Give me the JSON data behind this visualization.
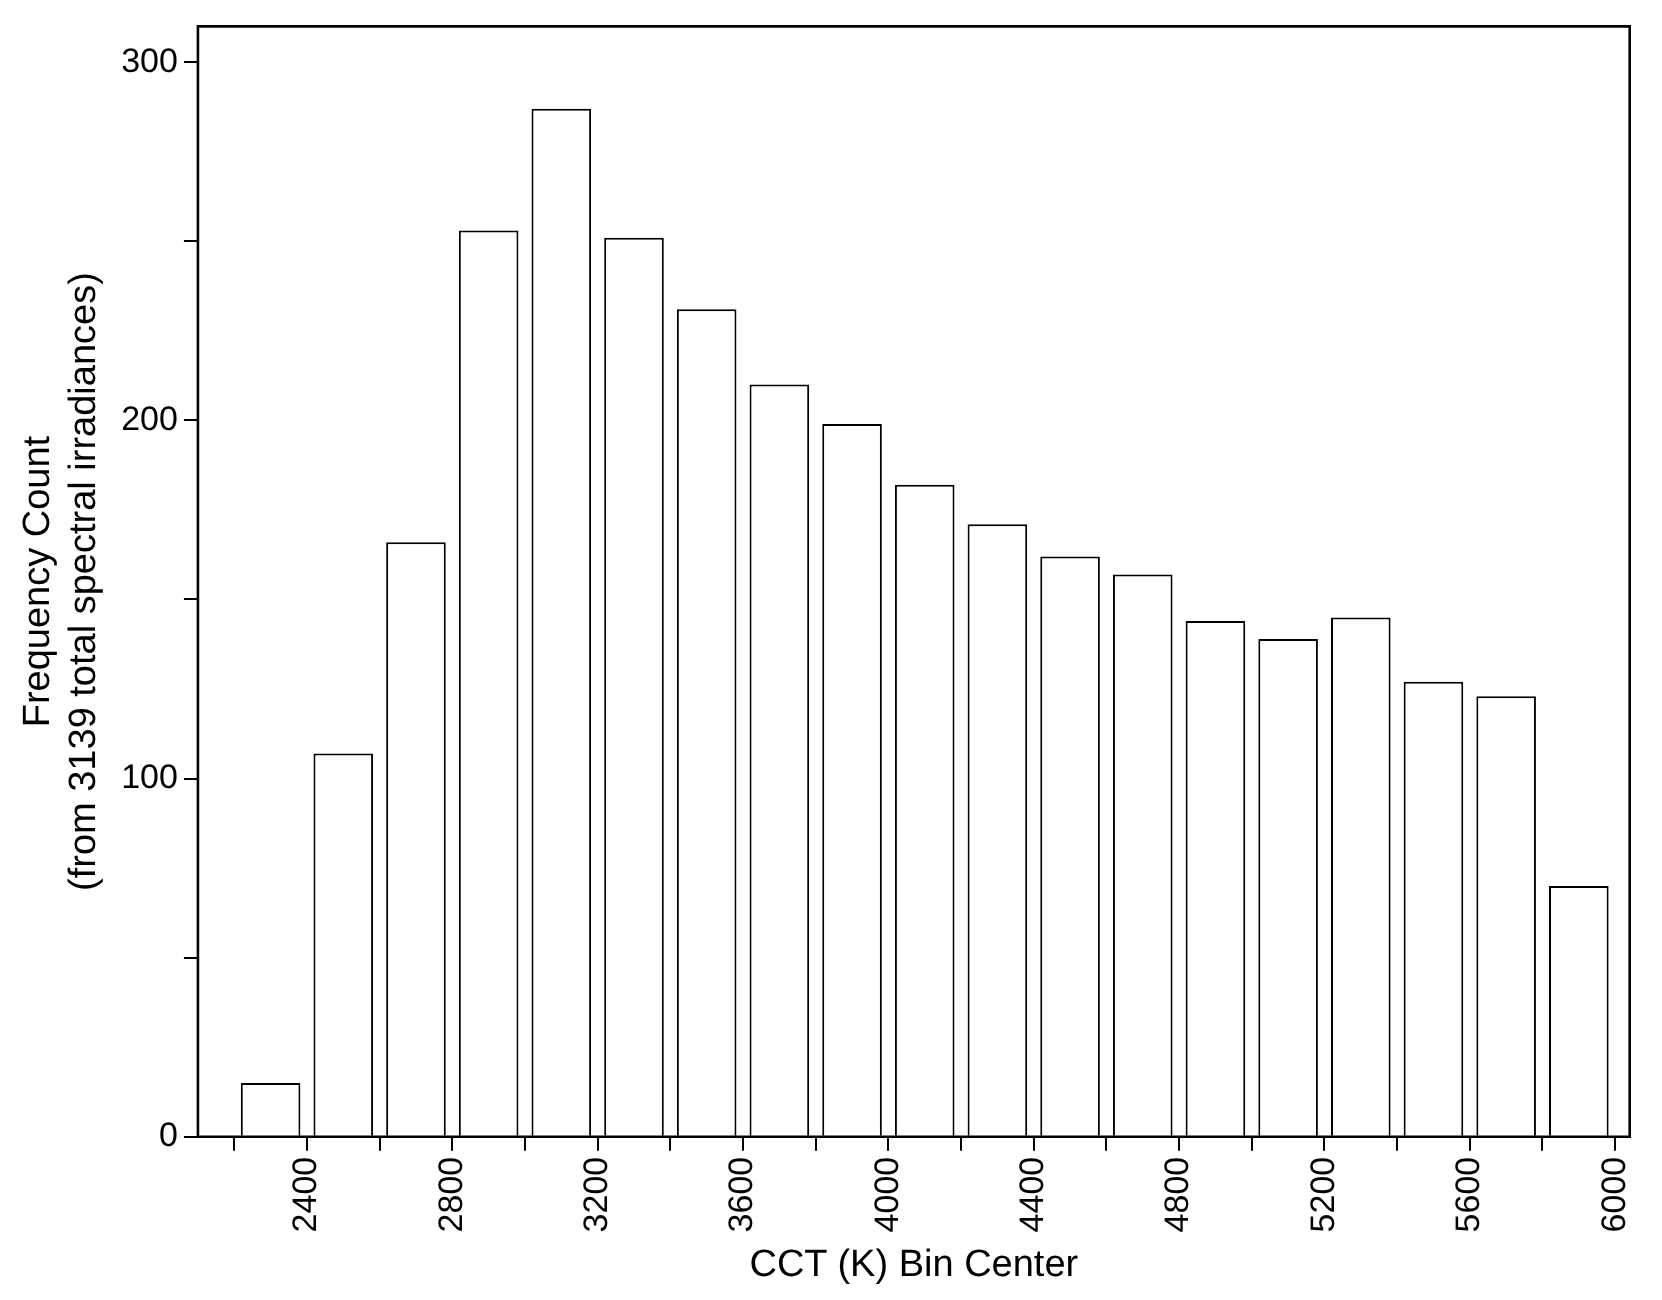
{
  "chart_data": {
    "type": "histogram",
    "xlabel": "CCT (K) Bin Center",
    "ylabel": "Frequency Count\n(from 3139 total spectral irradiances)",
    "bins": [
      2200,
      2400,
      2600,
      2800,
      3000,
      3200,
      3400,
      3600,
      3800,
      4000,
      4200,
      4400,
      4600,
      4800,
      5000,
      5200,
      5400,
      5600,
      5800,
      6000
    ],
    "values": [
      15,
      107,
      166,
      253,
      287,
      251,
      231,
      210,
      199,
      182,
      171,
      162,
      157,
      144,
      139,
      145,
      127,
      123,
      70
    ],
    "color": "#ffffff",
    "xlim": [
      2100,
      6040
    ],
    "xticks": [
      {
        "value": 2200,
        "label": null
      },
      2400,
      {
        "value": 2600,
        "label": null
      },
      2800,
      {
        "value": 3000,
        "label": null
      },
      3200,
      {
        "value": 3400,
        "label": null
      },
      3600,
      {
        "value": 3800,
        "label": null
      },
      4000,
      {
        "value": 4200,
        "label": null
      },
      4400,
      {
        "value": 4600,
        "label": null
      },
      4800,
      {
        "value": 5000,
        "label": null
      },
      5200,
      {
        "value": 5400,
        "label": null
      },
      5600,
      {
        "value": 5800,
        "label": null
      },
      6000
    ],
    "ylim": [
      0,
      310
    ],
    "yticks": [
      0,
      {
        "value": 50,
        "label": null
      },
      100,
      {
        "value": 150,
        "label": null
      },
      200,
      {
        "value": 250,
        "label": null
      },
      300
    ],
    "grid": false,
    "legend": false
  }
}
